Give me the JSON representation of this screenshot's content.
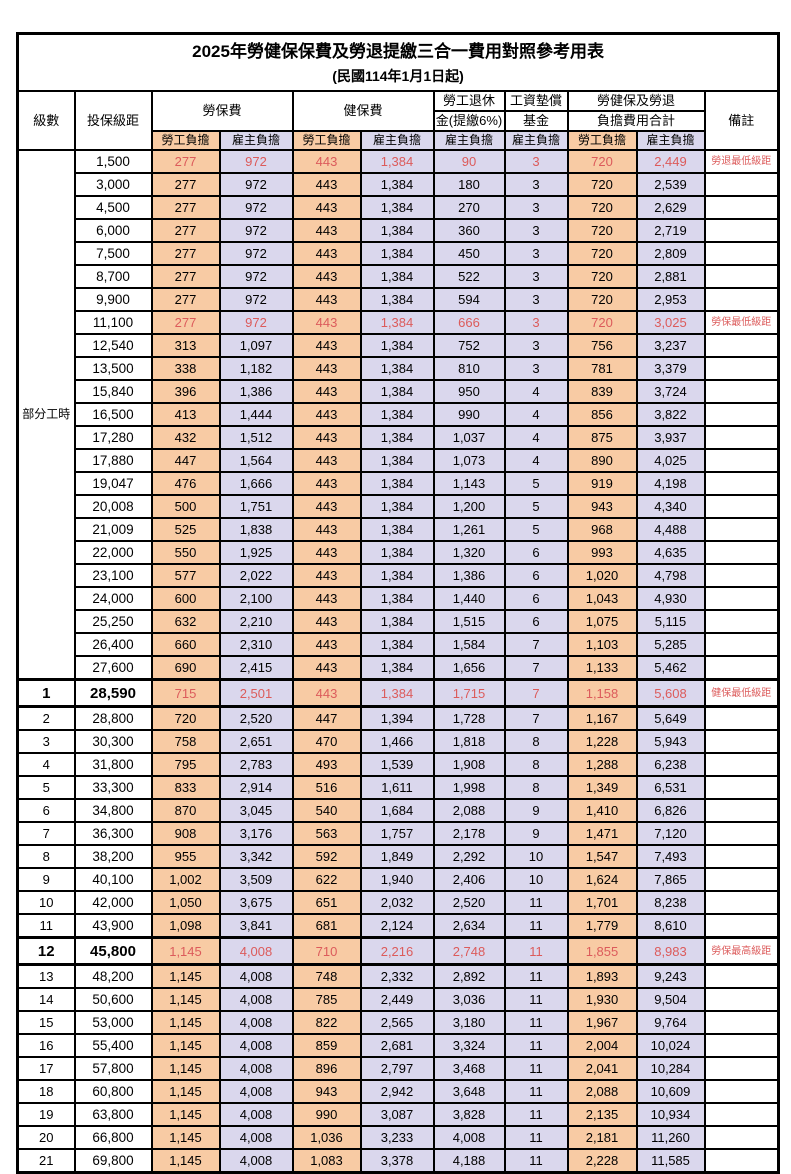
{
  "title": "2025年勞健保保費及勞退提繳三合一費用對照參考用表",
  "subtitle": "(民國114年1月1日起)",
  "colors": {
    "employee_bg": "#F8CBA4",
    "employer_bg": "#DAD7ED",
    "highlight_text": "#DC5B5B",
    "border": "#000000"
  },
  "header": {
    "level": "級數",
    "bracket": "投保級距",
    "labor_insurance": "勞保費",
    "health_insurance": "健保費",
    "pension_line1": "勞工退休",
    "pension_line2": "金(提繳6%)",
    "wage_fund_line1": "工資墊償",
    "wage_fund_line2": "基金",
    "total_line1": "勞健保及勞退",
    "total_line2": "負擔費用合計",
    "remarks": "備註",
    "employee_burden": "勞工負擔",
    "employer_burden": "雇主負擔"
  },
  "part_time_label": "部分工時",
  "part_time_rowspan": 23,
  "rows": [
    {
      "level": "",
      "bracket": "1,500",
      "li_emp": "277",
      "li_er": "972",
      "hi_emp": "443",
      "hi_er": "1,384",
      "pension": "90",
      "fund": "3",
      "tot_emp": "720",
      "tot_er": "2,449",
      "note": "勞退最低級距",
      "red": true,
      "emphasis": false
    },
    {
      "level": "",
      "bracket": "3,000",
      "li_emp": "277",
      "li_er": "972",
      "hi_emp": "443",
      "hi_er": "1,384",
      "pension": "180",
      "fund": "3",
      "tot_emp": "720",
      "tot_er": "2,539",
      "note": "",
      "red": false,
      "emphasis": false
    },
    {
      "level": "",
      "bracket": "4,500",
      "li_emp": "277",
      "li_er": "972",
      "hi_emp": "443",
      "hi_er": "1,384",
      "pension": "270",
      "fund": "3",
      "tot_emp": "720",
      "tot_er": "2,629",
      "note": "",
      "red": false,
      "emphasis": false
    },
    {
      "level": "",
      "bracket": "6,000",
      "li_emp": "277",
      "li_er": "972",
      "hi_emp": "443",
      "hi_er": "1,384",
      "pension": "360",
      "fund": "3",
      "tot_emp": "720",
      "tot_er": "2,719",
      "note": "",
      "red": false,
      "emphasis": false
    },
    {
      "level": "",
      "bracket": "7,500",
      "li_emp": "277",
      "li_er": "972",
      "hi_emp": "443",
      "hi_er": "1,384",
      "pension": "450",
      "fund": "3",
      "tot_emp": "720",
      "tot_er": "2,809",
      "note": "",
      "red": false,
      "emphasis": false
    },
    {
      "level": "",
      "bracket": "8,700",
      "li_emp": "277",
      "li_er": "972",
      "hi_emp": "443",
      "hi_er": "1,384",
      "pension": "522",
      "fund": "3",
      "tot_emp": "720",
      "tot_er": "2,881",
      "note": "",
      "red": false,
      "emphasis": false
    },
    {
      "level": "",
      "bracket": "9,900",
      "li_emp": "277",
      "li_er": "972",
      "hi_emp": "443",
      "hi_er": "1,384",
      "pension": "594",
      "fund": "3",
      "tot_emp": "720",
      "tot_er": "2,953",
      "note": "",
      "red": false,
      "emphasis": false
    },
    {
      "level": "",
      "bracket": "11,100",
      "li_emp": "277",
      "li_er": "972",
      "hi_emp": "443",
      "hi_er": "1,384",
      "pension": "666",
      "fund": "3",
      "tot_emp": "720",
      "tot_er": "3,025",
      "note": "勞保最低級距",
      "red": true,
      "emphasis": false
    },
    {
      "level": "",
      "bracket": "12,540",
      "li_emp": "313",
      "li_er": "1,097",
      "hi_emp": "443",
      "hi_er": "1,384",
      "pension": "752",
      "fund": "3",
      "tot_emp": "756",
      "tot_er": "3,237",
      "note": "",
      "red": false,
      "emphasis": false
    },
    {
      "level": "",
      "bracket": "13,500",
      "li_emp": "338",
      "li_er": "1,182",
      "hi_emp": "443",
      "hi_er": "1,384",
      "pension": "810",
      "fund": "3",
      "tot_emp": "781",
      "tot_er": "3,379",
      "note": "",
      "red": false,
      "emphasis": false
    },
    {
      "level": "",
      "bracket": "15,840",
      "li_emp": "396",
      "li_er": "1,386",
      "hi_emp": "443",
      "hi_er": "1,384",
      "pension": "950",
      "fund": "4",
      "tot_emp": "839",
      "tot_er": "3,724",
      "note": "",
      "red": false,
      "emphasis": false
    },
    {
      "level": "",
      "bracket": "16,500",
      "li_emp": "413",
      "li_er": "1,444",
      "hi_emp": "443",
      "hi_er": "1,384",
      "pension": "990",
      "fund": "4",
      "tot_emp": "856",
      "tot_er": "3,822",
      "note": "",
      "red": false,
      "emphasis": false
    },
    {
      "level": "",
      "bracket": "17,280",
      "li_emp": "432",
      "li_er": "1,512",
      "hi_emp": "443",
      "hi_er": "1,384",
      "pension": "1,037",
      "fund": "4",
      "tot_emp": "875",
      "tot_er": "3,937",
      "note": "",
      "red": false,
      "emphasis": false
    },
    {
      "level": "",
      "bracket": "17,880",
      "li_emp": "447",
      "li_er": "1,564",
      "hi_emp": "443",
      "hi_er": "1,384",
      "pension": "1,073",
      "fund": "4",
      "tot_emp": "890",
      "tot_er": "4,025",
      "note": "",
      "red": false,
      "emphasis": false
    },
    {
      "level": "",
      "bracket": "19,047",
      "li_emp": "476",
      "li_er": "1,666",
      "hi_emp": "443",
      "hi_er": "1,384",
      "pension": "1,143",
      "fund": "5",
      "tot_emp": "919",
      "tot_er": "4,198",
      "note": "",
      "red": false,
      "emphasis": false
    },
    {
      "level": "",
      "bracket": "20,008",
      "li_emp": "500",
      "li_er": "1,751",
      "hi_emp": "443",
      "hi_er": "1,384",
      "pension": "1,200",
      "fund": "5",
      "tot_emp": "943",
      "tot_er": "4,340",
      "note": "",
      "red": false,
      "emphasis": false
    },
    {
      "level": "",
      "bracket": "21,009",
      "li_emp": "525",
      "li_er": "1,838",
      "hi_emp": "443",
      "hi_er": "1,384",
      "pension": "1,261",
      "fund": "5",
      "tot_emp": "968",
      "tot_er": "4,488",
      "note": "",
      "red": false,
      "emphasis": false
    },
    {
      "level": "",
      "bracket": "22,000",
      "li_emp": "550",
      "li_er": "1,925",
      "hi_emp": "443",
      "hi_er": "1,384",
      "pension": "1,320",
      "fund": "6",
      "tot_emp": "993",
      "tot_er": "4,635",
      "note": "",
      "red": false,
      "emphasis": false
    },
    {
      "level": "",
      "bracket": "23,100",
      "li_emp": "577",
      "li_er": "2,022",
      "hi_emp": "443",
      "hi_er": "1,384",
      "pension": "1,386",
      "fund": "6",
      "tot_emp": "1,020",
      "tot_er": "4,798",
      "note": "",
      "red": false,
      "emphasis": false
    },
    {
      "level": "",
      "bracket": "24,000",
      "li_emp": "600",
      "li_er": "2,100",
      "hi_emp": "443",
      "hi_er": "1,384",
      "pension": "1,440",
      "fund": "6",
      "tot_emp": "1,043",
      "tot_er": "4,930",
      "note": "",
      "red": false,
      "emphasis": false
    },
    {
      "level": "",
      "bracket": "25,250",
      "li_emp": "632",
      "li_er": "2,210",
      "hi_emp": "443",
      "hi_er": "1,384",
      "pension": "1,515",
      "fund": "6",
      "tot_emp": "1,075",
      "tot_er": "5,115",
      "note": "",
      "red": false,
      "emphasis": false
    },
    {
      "level": "",
      "bracket": "26,400",
      "li_emp": "660",
      "li_er": "2,310",
      "hi_emp": "443",
      "hi_er": "1,384",
      "pension": "1,584",
      "fund": "7",
      "tot_emp": "1,103",
      "tot_er": "5,285",
      "note": "",
      "red": false,
      "emphasis": false
    },
    {
      "level": "",
      "bracket": "27,600",
      "li_emp": "690",
      "li_er": "2,415",
      "hi_emp": "443",
      "hi_er": "1,384",
      "pension": "1,656",
      "fund": "7",
      "tot_emp": "1,133",
      "tot_er": "5,462",
      "note": "",
      "red": false,
      "emphasis": false
    },
    {
      "level": "1",
      "bracket": "28,590",
      "li_emp": "715",
      "li_er": "2,501",
      "hi_emp": "443",
      "hi_er": "1,384",
      "pension": "1,715",
      "fund": "7",
      "tot_emp": "1,158",
      "tot_er": "5,608",
      "note": "健保最低級距",
      "red": true,
      "emphasis": true
    },
    {
      "level": "2",
      "bracket": "28,800",
      "li_emp": "720",
      "li_er": "2,520",
      "hi_emp": "447",
      "hi_er": "1,394",
      "pension": "1,728",
      "fund": "7",
      "tot_emp": "1,167",
      "tot_er": "5,649",
      "note": "",
      "red": false,
      "emphasis": false
    },
    {
      "level": "3",
      "bracket": "30,300",
      "li_emp": "758",
      "li_er": "2,651",
      "hi_emp": "470",
      "hi_er": "1,466",
      "pension": "1,818",
      "fund": "8",
      "tot_emp": "1,228",
      "tot_er": "5,943",
      "note": "",
      "red": false,
      "emphasis": false
    },
    {
      "level": "4",
      "bracket": "31,800",
      "li_emp": "795",
      "li_er": "2,783",
      "hi_emp": "493",
      "hi_er": "1,539",
      "pension": "1,908",
      "fund": "8",
      "tot_emp": "1,288",
      "tot_er": "6,238",
      "note": "",
      "red": false,
      "emphasis": false
    },
    {
      "level": "5",
      "bracket": "33,300",
      "li_emp": "833",
      "li_er": "2,914",
      "hi_emp": "516",
      "hi_er": "1,611",
      "pension": "1,998",
      "fund": "8",
      "tot_emp": "1,349",
      "tot_er": "6,531",
      "note": "",
      "red": false,
      "emphasis": false
    },
    {
      "level": "6",
      "bracket": "34,800",
      "li_emp": "870",
      "li_er": "3,045",
      "hi_emp": "540",
      "hi_er": "1,684",
      "pension": "2,088",
      "fund": "9",
      "tot_emp": "1,410",
      "tot_er": "6,826",
      "note": "",
      "red": false,
      "emphasis": false
    },
    {
      "level": "7",
      "bracket": "36,300",
      "li_emp": "908",
      "li_er": "3,176",
      "hi_emp": "563",
      "hi_er": "1,757",
      "pension": "2,178",
      "fund": "9",
      "tot_emp": "1,471",
      "tot_er": "7,120",
      "note": "",
      "red": false,
      "emphasis": false
    },
    {
      "level": "8",
      "bracket": "38,200",
      "li_emp": "955",
      "li_er": "3,342",
      "hi_emp": "592",
      "hi_er": "1,849",
      "pension": "2,292",
      "fund": "10",
      "tot_emp": "1,547",
      "tot_er": "7,493",
      "note": "",
      "red": false,
      "emphasis": false
    },
    {
      "level": "9",
      "bracket": "40,100",
      "li_emp": "1,002",
      "li_er": "3,509",
      "hi_emp": "622",
      "hi_er": "1,940",
      "pension": "2,406",
      "fund": "10",
      "tot_emp": "1,624",
      "tot_er": "7,865",
      "note": "",
      "red": false,
      "emphasis": false
    },
    {
      "level": "10",
      "bracket": "42,000",
      "li_emp": "1,050",
      "li_er": "3,675",
      "hi_emp": "651",
      "hi_er": "2,032",
      "pension": "2,520",
      "fund": "11",
      "tot_emp": "1,701",
      "tot_er": "8,238",
      "note": "",
      "red": false,
      "emphasis": false
    },
    {
      "level": "11",
      "bracket": "43,900",
      "li_emp": "1,098",
      "li_er": "3,841",
      "hi_emp": "681",
      "hi_er": "2,124",
      "pension": "2,634",
      "fund": "11",
      "tot_emp": "1,779",
      "tot_er": "8,610",
      "note": "",
      "red": false,
      "emphasis": false
    },
    {
      "level": "12",
      "bracket": "45,800",
      "li_emp": "1,145",
      "li_er": "4,008",
      "hi_emp": "710",
      "hi_er": "2,216",
      "pension": "2,748",
      "fund": "11",
      "tot_emp": "1,855",
      "tot_er": "8,983",
      "note": "勞保最高級距",
      "red": true,
      "emphasis": true
    },
    {
      "level": "13",
      "bracket": "48,200",
      "li_emp": "1,145",
      "li_er": "4,008",
      "hi_emp": "748",
      "hi_er": "2,332",
      "pension": "2,892",
      "fund": "11",
      "tot_emp": "1,893",
      "tot_er": "9,243",
      "note": "",
      "red": false,
      "emphasis": false
    },
    {
      "level": "14",
      "bracket": "50,600",
      "li_emp": "1,145",
      "li_er": "4,008",
      "hi_emp": "785",
      "hi_er": "2,449",
      "pension": "3,036",
      "fund": "11",
      "tot_emp": "1,930",
      "tot_er": "9,504",
      "note": "",
      "red": false,
      "emphasis": false
    },
    {
      "level": "15",
      "bracket": "53,000",
      "li_emp": "1,145",
      "li_er": "4,008",
      "hi_emp": "822",
      "hi_er": "2,565",
      "pension": "3,180",
      "fund": "11",
      "tot_emp": "1,967",
      "tot_er": "9,764",
      "note": "",
      "red": false,
      "emphasis": false
    },
    {
      "level": "16",
      "bracket": "55,400",
      "li_emp": "1,145",
      "li_er": "4,008",
      "hi_emp": "859",
      "hi_er": "2,681",
      "pension": "3,324",
      "fund": "11",
      "tot_emp": "2,004",
      "tot_er": "10,024",
      "note": "",
      "red": false,
      "emphasis": false
    },
    {
      "level": "17",
      "bracket": "57,800",
      "li_emp": "1,145",
      "li_er": "4,008",
      "hi_emp": "896",
      "hi_er": "2,797",
      "pension": "3,468",
      "fund": "11",
      "tot_emp": "2,041",
      "tot_er": "10,284",
      "note": "",
      "red": false,
      "emphasis": false
    },
    {
      "level": "18",
      "bracket": "60,800",
      "li_emp": "1,145",
      "li_er": "4,008",
      "hi_emp": "943",
      "hi_er": "2,942",
      "pension": "3,648",
      "fund": "11",
      "tot_emp": "2,088",
      "tot_er": "10,609",
      "note": "",
      "red": false,
      "emphasis": false
    },
    {
      "level": "19",
      "bracket": "63,800",
      "li_emp": "1,145",
      "li_er": "4,008",
      "hi_emp": "990",
      "hi_er": "3,087",
      "pension": "3,828",
      "fund": "11",
      "tot_emp": "2,135",
      "tot_er": "10,934",
      "note": "",
      "red": false,
      "emphasis": false
    },
    {
      "level": "20",
      "bracket": "66,800",
      "li_emp": "1,145",
      "li_er": "4,008",
      "hi_emp": "1,036",
      "hi_er": "3,233",
      "pension": "4,008",
      "fund": "11",
      "tot_emp": "2,181",
      "tot_er": "11,260",
      "note": "",
      "red": false,
      "emphasis": false
    },
    {
      "level": "21",
      "bracket": "69,800",
      "li_emp": "1,145",
      "li_er": "4,008",
      "hi_emp": "1,083",
      "hi_er": "3,378",
      "pension": "4,188",
      "fund": "11",
      "tot_emp": "2,228",
      "tot_er": "11,585",
      "note": "",
      "red": false,
      "emphasis": false
    }
  ]
}
